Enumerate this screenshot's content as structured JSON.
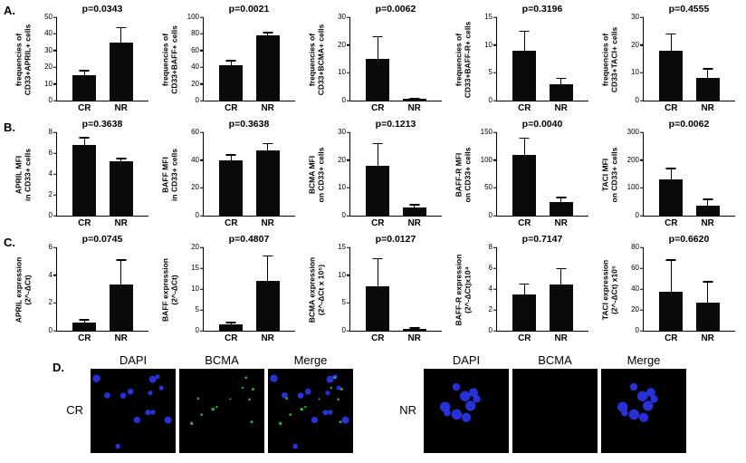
{
  "figure": {
    "panel_labels": {
      "a": "A.",
      "b": "B.",
      "c": "C.",
      "d": "D."
    }
  },
  "chart_data": [
    {
      "id": "a1-april-frequency",
      "type": "bar",
      "p_label": "p=0.0343",
      "ylabel_lines": [
        "frequencies of",
        "CD33+APRIL+ cells"
      ],
      "categories": [
        "CR",
        "NR"
      ],
      "values": [
        15,
        35
      ],
      "errors": [
        3,
        9
      ],
      "ylim": [
        0,
        50
      ],
      "yticks": [
        0,
        10,
        20,
        30,
        40,
        50
      ]
    },
    {
      "id": "a2-baff-frequency",
      "type": "bar",
      "p_label": "p=0.0021",
      "ylabel_lines": [
        "frequencies of",
        "CD33+BAFF+ cells"
      ],
      "categories": [
        "CR",
        "NR"
      ],
      "values": [
        42,
        78
      ],
      "errors": [
        6,
        4
      ],
      "ylim": [
        0,
        100
      ],
      "yticks": [
        0,
        20,
        40,
        60,
        80,
        100
      ]
    },
    {
      "id": "a3-bcma-frequency",
      "type": "bar",
      "p_label": "p=0.0062",
      "ylabel_lines": [
        "frequencies of",
        "CD33+BCMA+ cells"
      ],
      "categories": [
        "CR",
        "NR"
      ],
      "values": [
        15,
        0.5
      ],
      "errors": [
        8,
        0.4
      ],
      "ylim": [
        0,
        30
      ],
      "yticks": [
        0,
        10,
        20,
        30
      ]
    },
    {
      "id": "a4-baffr-frequency",
      "type": "bar",
      "p_label": "p=0.3196",
      "ylabel_lines": [
        "frequencies of",
        "CD33+BAFF-R+ cells"
      ],
      "categories": [
        "CR",
        "NR"
      ],
      "values": [
        9,
        3
      ],
      "errors": [
        3.5,
        1
      ],
      "ylim": [
        0,
        15
      ],
      "yticks": [
        0,
        5,
        10,
        15
      ]
    },
    {
      "id": "a5-taci-frequency",
      "type": "bar",
      "p_label": "p=0.4555",
      "ylabel_lines": [
        "frequencies of",
        "CD33+TACI+ cells"
      ],
      "categories": [
        "CR",
        "NR"
      ],
      "values": [
        18,
        8
      ],
      "errors": [
        6,
        3.5
      ],
      "ylim": [
        0,
        30
      ],
      "yticks": [
        0,
        10,
        20,
        30
      ]
    },
    {
      "id": "b1-april-mfi",
      "type": "bar",
      "p_label": "p=0.3638",
      "ylabel_lines": [
        "APRIL MFI",
        "in CD33+ cells"
      ],
      "categories": [
        "CR",
        "NR"
      ],
      "values": [
        6.8,
        5.2
      ],
      "errors": [
        0.7,
        0.3
      ],
      "ylim": [
        0,
        8
      ],
      "yticks": [
        0,
        2,
        4,
        6,
        8
      ]
    },
    {
      "id": "b2-baff-mfi",
      "type": "bar",
      "p_label": "p=0.3638",
      "ylabel_lines": [
        "BAFF MFI",
        "in CD33+ cells"
      ],
      "categories": [
        "CR",
        "NR"
      ],
      "values": [
        40,
        47
      ],
      "errors": [
        4,
        5
      ],
      "ylim": [
        0,
        60
      ],
      "yticks": [
        0,
        20,
        40,
        60
      ]
    },
    {
      "id": "b3-bcma-mfi",
      "type": "bar",
      "p_label": "p=0.1213",
      "ylabel_lines": [
        "BCMA MFI",
        "on CD33+ cells"
      ],
      "categories": [
        "CR",
        "NR"
      ],
      "values": [
        18,
        3
      ],
      "errors": [
        8,
        1
      ],
      "ylim": [
        0,
        30
      ],
      "yticks": [
        0,
        10,
        20,
        30
      ]
    },
    {
      "id": "b4-baffr-mfi",
      "type": "bar",
      "p_label": "p=0.0040",
      "ylabel_lines": [
        "BAFF-R MFI",
        "on CD33+ cells"
      ],
      "categories": [
        "CR",
        "NR"
      ],
      "values": [
        110,
        25
      ],
      "errors": [
        30,
        8
      ],
      "ylim": [
        0,
        150
      ],
      "yticks": [
        0,
        50,
        100,
        150
      ]
    },
    {
      "id": "b5-taci-mfi",
      "type": "bar",
      "p_label": "p=0.0062",
      "ylabel_lines": [
        "TACI MFI",
        "on CD33+ cells"
      ],
      "categories": [
        "CR",
        "NR"
      ],
      "values": [
        130,
        35
      ],
      "errors": [
        40,
        25
      ],
      "ylim": [
        0,
        300
      ],
      "yticks": [
        0,
        100,
        200,
        300
      ]
    },
    {
      "id": "c1-april-expression",
      "type": "bar",
      "p_label": "p=0.0745",
      "ylabel_lines": [
        "APRIL expression",
        "(2^-ΔCt)"
      ],
      "categories": [
        "CR",
        "NR"
      ],
      "values": [
        0.6,
        3.3
      ],
      "errors": [
        0.2,
        1.8
      ],
      "ylim": [
        0,
        6
      ],
      "yticks": [
        0,
        2,
        4,
        6
      ]
    },
    {
      "id": "c2-baff-expression",
      "type": "bar",
      "p_label": "p=0.4807",
      "ylabel_lines": [
        "BAFF expression",
        "(2^-ΔCt)"
      ],
      "categories": [
        "CR",
        "NR"
      ],
      "values": [
        1.5,
        12
      ],
      "errors": [
        0.5,
        6
      ],
      "ylim": [
        0,
        20
      ],
      "yticks": [
        0,
        5,
        10,
        15,
        20
      ]
    },
    {
      "id": "c3-bcma-expression",
      "type": "bar",
      "p_label": "p=0.0127",
      "ylabel_lines": [
        "BCMA expression",
        "(2^-ΔCt x 10⁵)"
      ],
      "categories": [
        "CR",
        "NR"
      ],
      "values": [
        8,
        0.3
      ],
      "errors": [
        5,
        0.25
      ],
      "ylim": [
        0,
        15
      ],
      "yticks": [
        0,
        5,
        10,
        15
      ]
    },
    {
      "id": "c4-baffr-expression",
      "type": "bar",
      "p_label": "p=0.7147",
      "ylabel_lines": [
        "BAFF-R expression",
        "(2^-ΔCt)x10⁴"
      ],
      "categories": [
        "CR",
        "NR"
      ],
      "values": [
        3.5,
        4.4
      ],
      "errors": [
        1,
        1.6
      ],
      "ylim": [
        0,
        8
      ],
      "yticks": [
        0,
        2,
        4,
        6,
        8
      ]
    },
    {
      "id": "c5-taci-expression",
      "type": "bar",
      "p_label": "p=0.6620",
      "ylabel_lines": [
        "TACI expression",
        "(2^-ΔCt) x10⁵"
      ],
      "categories": [
        "CR",
        "NR"
      ],
      "values": [
        37,
        27
      ],
      "errors": [
        31,
        20
      ],
      "ylim": [
        0,
        80
      ],
      "yticks": [
        0,
        20,
        40,
        60,
        80
      ]
    }
  ],
  "panel_d": {
    "column_headers": [
      "DAPI",
      "BCMA",
      "Merge",
      "DAPI",
      "BCMA",
      "Merge"
    ],
    "colors": {
      "dapi_blue": "#2a35e8",
      "bcma_green": "#2fbf3f",
      "background": "#000000"
    },
    "groups": [
      {
        "label": "CR",
        "images": [
          {
            "name": "cr-dapi",
            "layers": [
              {
                "color": "#2a35e8",
                "count": 13,
                "rmin": 2.5,
                "rmax": 4.5,
                "seed": 7,
                "cluster": false
              }
            ]
          },
          {
            "name": "cr-bcma",
            "layers": [
              {
                "color": "#2fbf3f",
                "count": 11,
                "rmin": 1,
                "rmax": 2,
                "seed": 21,
                "cluster": false
              }
            ]
          },
          {
            "name": "cr-merge",
            "layers": [
              {
                "color": "#2a35e8",
                "count": 13,
                "rmin": 2.5,
                "rmax": 4.5,
                "seed": 7,
                "cluster": false
              },
              {
                "color": "#2fbf3f",
                "count": 11,
                "rmin": 1,
                "rmax": 2,
                "seed": 21,
                "cluster": false
              }
            ]
          }
        ]
      },
      {
        "label": "NR",
        "images": [
          {
            "name": "nr-dapi",
            "layers": [
              {
                "color": "#2a35e8",
                "count": 9,
                "rmin": 4,
                "rmax": 6.5,
                "seed": 42,
                "cluster": true
              }
            ]
          },
          {
            "name": "nr-bcma",
            "layers": []
          },
          {
            "name": "nr-merge",
            "layers": [
              {
                "color": "#2a35e8",
                "count": 9,
                "rmin": 4,
                "rmax": 6.5,
                "seed": 42,
                "cluster": true
              }
            ]
          }
        ]
      }
    ]
  }
}
